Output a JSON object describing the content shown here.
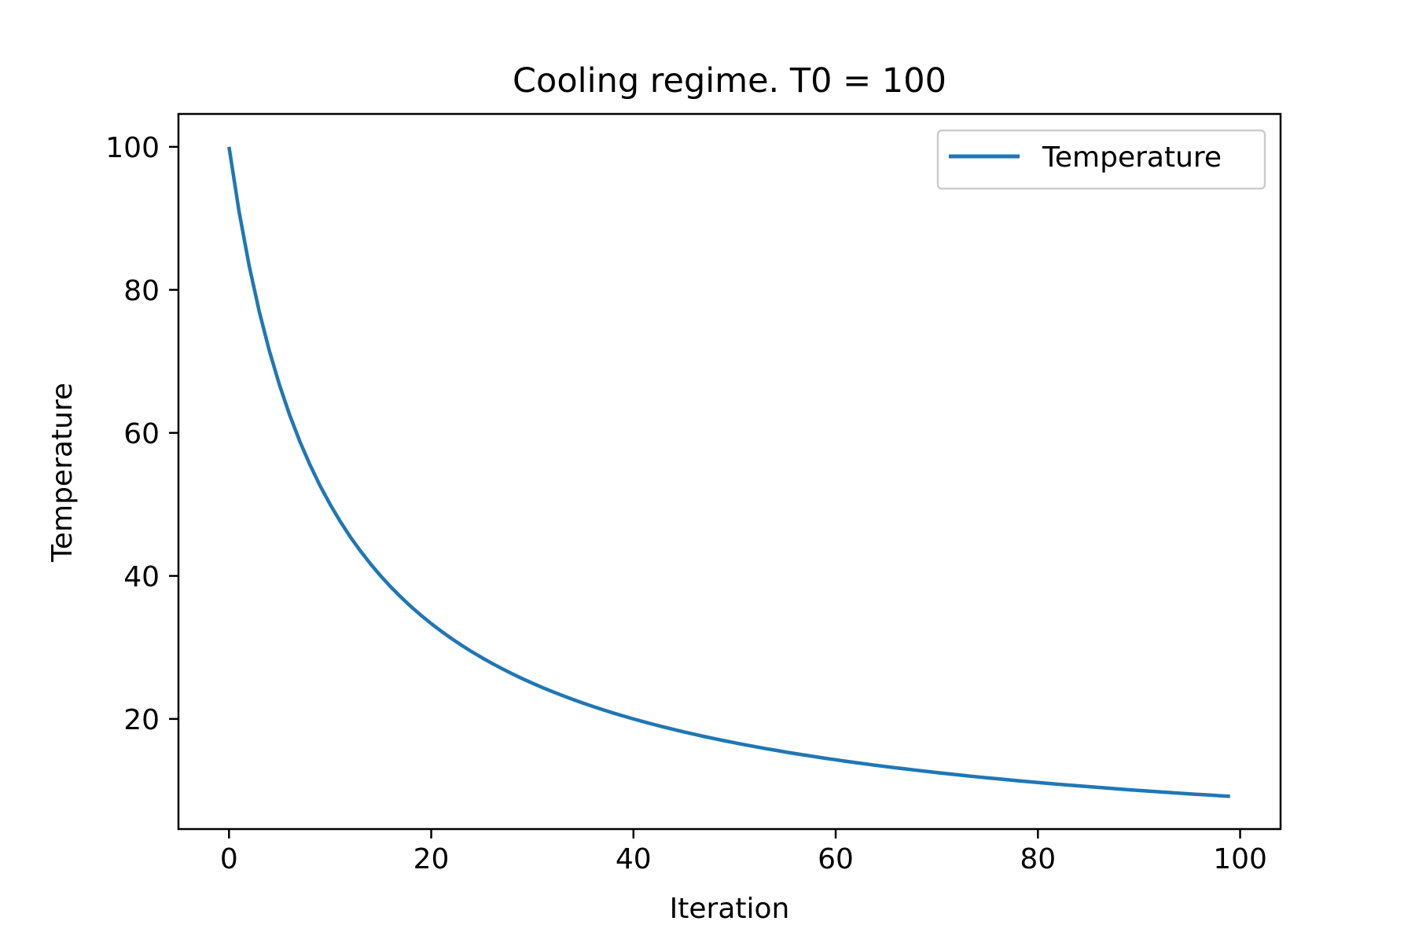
{
  "chart_data": {
    "type": "line",
    "title": "Cooling regime. T0 = 100",
    "xlabel": "Iteration",
    "ylabel": "Temperature",
    "xlim": [
      -5,
      104
    ],
    "ylim": [
      4.6,
      104.6
    ],
    "xticks": [
      "0",
      "20",
      "40",
      "60",
      "80",
      "100"
    ],
    "yticks": [
      "20",
      "40",
      "60",
      "80",
      "100"
    ],
    "grid": false,
    "legend_position": "top-right",
    "series": [
      {
        "name": "Temperature",
        "color": "#1f77b4",
        "x": [
          0,
          1,
          2,
          3,
          4,
          5,
          6,
          7,
          8,
          9,
          10,
          11,
          12,
          13,
          14,
          15,
          16,
          17,
          18,
          19,
          20,
          21,
          22,
          23,
          24,
          25,
          26,
          27,
          28,
          29,
          30,
          31,
          32,
          33,
          34,
          35,
          36,
          37,
          38,
          39,
          40,
          41,
          42,
          43,
          44,
          45,
          46,
          47,
          48,
          49,
          50,
          51,
          52,
          53,
          54,
          55,
          56,
          57,
          58,
          59,
          60,
          61,
          62,
          63,
          64,
          65,
          66,
          67,
          68,
          69,
          70,
          71,
          72,
          73,
          74,
          75,
          76,
          77,
          78,
          79,
          80,
          81,
          82,
          83,
          84,
          85,
          86,
          87,
          88,
          89,
          90,
          91,
          92,
          93,
          94,
          95,
          96,
          97,
          98,
          99
        ],
        "y": [
          100.0,
          90.91,
          83.33,
          76.92,
          71.43,
          66.67,
          62.5,
          58.82,
          55.56,
          52.63,
          50.0,
          47.62,
          45.45,
          43.48,
          41.67,
          40.0,
          38.46,
          37.04,
          35.71,
          34.48,
          33.33,
          32.26,
          31.25,
          30.3,
          29.41,
          28.57,
          27.78,
          27.03,
          26.32,
          25.64,
          25.0,
          24.39,
          23.81,
          23.26,
          22.73,
          22.22,
          21.74,
          21.28,
          20.83,
          20.41,
          20.0,
          19.61,
          19.23,
          18.87,
          18.52,
          18.18,
          17.86,
          17.54,
          17.24,
          16.95,
          16.67,
          16.39,
          16.13,
          15.87,
          15.63,
          15.38,
          15.15,
          14.93,
          14.71,
          14.49,
          14.29,
          14.08,
          13.89,
          13.7,
          13.51,
          13.33,
          13.16,
          12.99,
          12.82,
          12.66,
          12.5,
          12.35,
          12.2,
          12.05,
          11.9,
          11.76,
          11.63,
          11.49,
          11.36,
          11.24,
          11.11,
          10.99,
          10.87,
          10.75,
          10.64,
          10.53,
          10.42,
          10.31,
          10.2,
          10.1,
          10.0,
          9.9,
          9.8,
          9.71,
          9.62,
          9.52,
          9.43,
          9.35,
          9.26,
          9.17
        ]
      }
    ]
  }
}
